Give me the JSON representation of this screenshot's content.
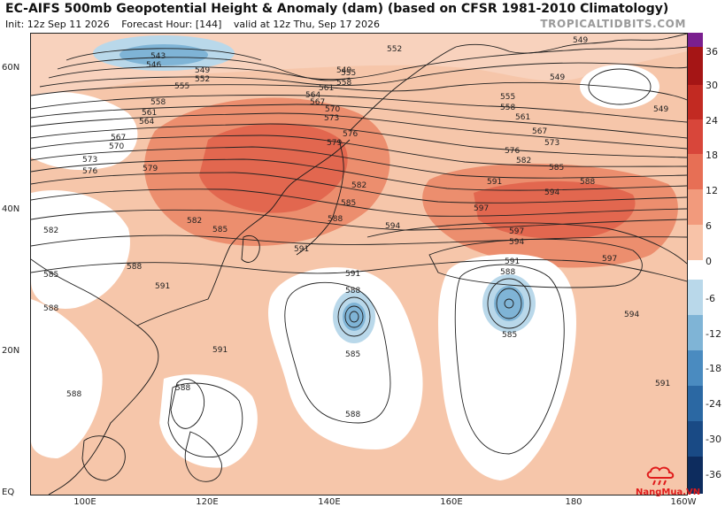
{
  "header": {
    "title": "EC-AIFS 500mb Geopotential Height & Anomaly (dam) (based on CFSR 1981-2010 Climatology)",
    "init": "Init: 12z Sep 11 2026",
    "forecast_hour": "Forecast Hour: [144]",
    "valid": "valid at 12z Thu, Sep 17 2026",
    "brand": "TROPICALTIDBITS.COM"
  },
  "axes": {
    "lat_labels": [
      "60N",
      "40N",
      "20N",
      "EQ"
    ],
    "lon_labels": [
      "100E",
      "120E",
      "140E",
      "160E",
      "180",
      "160W"
    ]
  },
  "contour_labels": [
    "543",
    "546",
    "549",
    "552",
    "555",
    "558",
    "561",
    "564",
    "567",
    "570",
    "573",
    "576",
    "579",
    "582",
    "585",
    "588",
    "591",
    "594",
    "597"
  ],
  "colorbar": {
    "labels": [
      "36",
      "30",
      "24",
      "18",
      "12",
      "6",
      "0",
      "-6",
      "-12",
      "-18",
      "-24",
      "-30",
      "-36"
    ],
    "colors": [
      "#7a1f8f",
      "#a51515",
      "#c22a22",
      "#d8463a",
      "#e76f55",
      "#f29a7c",
      "#f8c3a8",
      "#ffffff",
      "#b9d8ea",
      "#7fb4d6",
      "#4a8bc0",
      "#2b68a3",
      "#194a85",
      "#0d2c5e"
    ]
  },
  "logo": {
    "text": "NangMua.VN",
    "color": "#e01b1b"
  }
}
